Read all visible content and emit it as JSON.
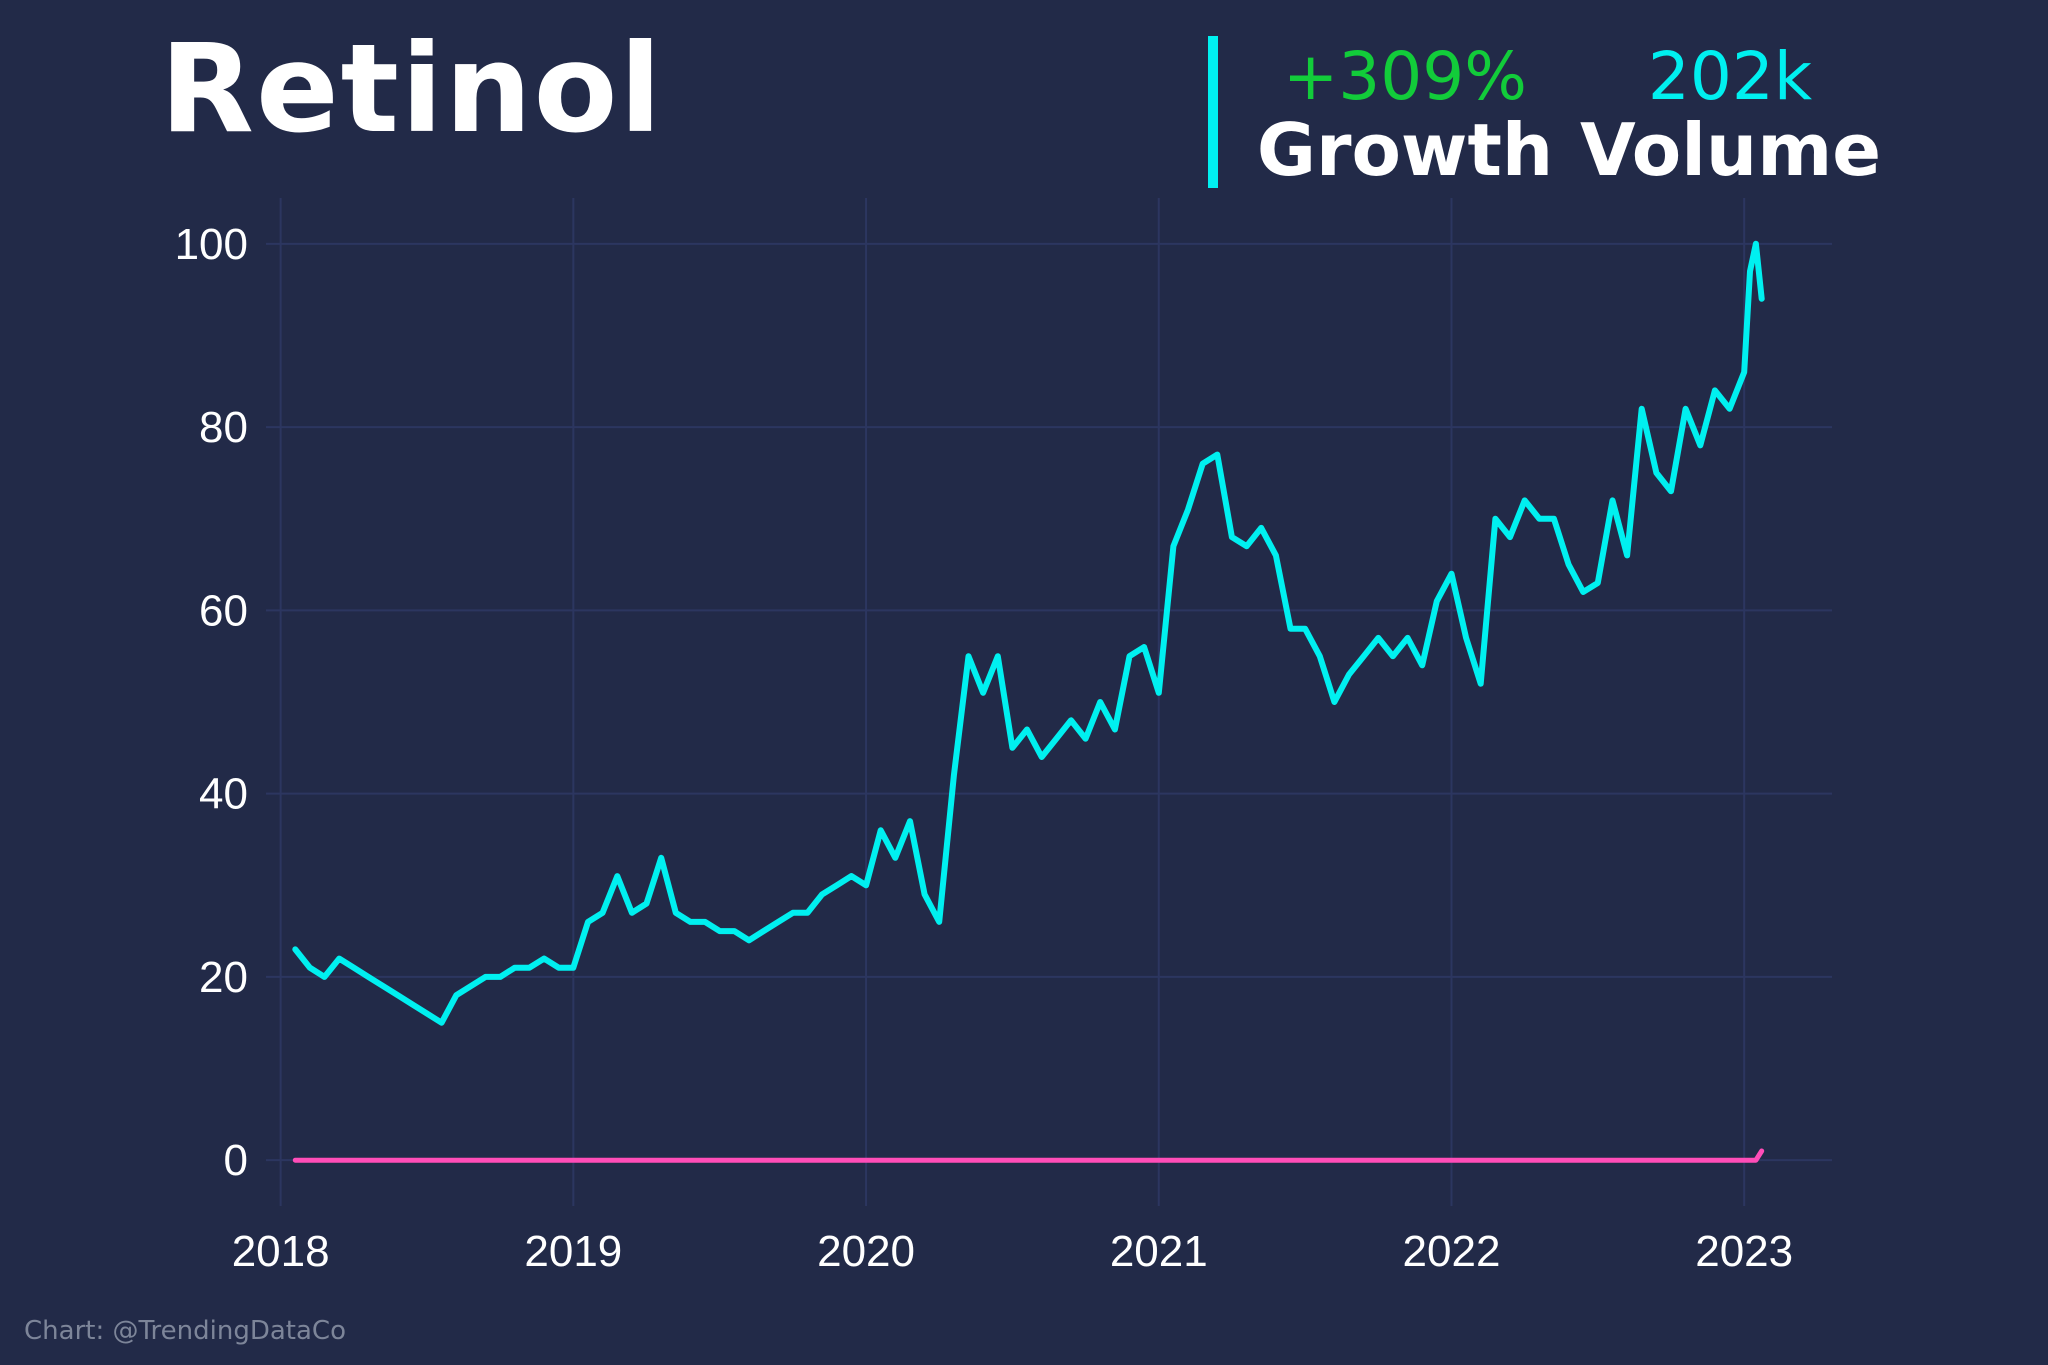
{
  "header": {
    "title": "Retinol",
    "growth_value": "+309%",
    "growth_label": "Growth",
    "volume_value": "202k",
    "volume_label": "Volume"
  },
  "footer": {
    "credit": "Chart: @TrendingDataCo"
  },
  "colors": {
    "background": "#222a48",
    "grid": "#2c3660",
    "line": "#00f0f0",
    "baseline": "#ff4db8",
    "growth": "#12cc3a",
    "text": "#ffffff"
  },
  "chart_data": {
    "type": "line",
    "title": "Retinol",
    "xlabel": "",
    "ylabel": "",
    "xlim": [
      2017.95,
      2023.3
    ],
    "ylim": [
      -5,
      105
    ],
    "x_ticks": [
      "2018",
      "2019",
      "2020",
      "2021",
      "2022",
      "2023"
    ],
    "y_ticks": [
      "0",
      "20",
      "40",
      "60",
      "80",
      "100"
    ],
    "grid": true,
    "series": [
      {
        "color": "#00f0f0",
        "x": [
          2018.05,
          2018.1,
          2018.15,
          2018.2,
          2018.25,
          2018.3,
          2018.35,
          2018.4,
          2018.45,
          2018.5,
          2018.55,
          2018.6,
          2018.65,
          2018.7,
          2018.75,
          2018.8,
          2018.85,
          2018.9,
          2018.95,
          2019.0,
          2019.05,
          2019.1,
          2019.15,
          2019.2,
          2019.25,
          2019.3,
          2019.35,
          2019.4,
          2019.45,
          2019.5,
          2019.55,
          2019.6,
          2019.65,
          2019.7,
          2019.75,
          2019.8,
          2019.85,
          2019.9,
          2019.95,
          2020.0,
          2020.05,
          2020.1,
          2020.15,
          2020.2,
          2020.25,
          2020.3,
          2020.35,
          2020.4,
          2020.45,
          2020.5,
          2020.55,
          2020.6,
          2020.65,
          2020.7,
          2020.75,
          2020.8,
          2020.85,
          2020.9,
          2020.95,
          2021.0,
          2021.05,
          2021.1,
          2021.15,
          2021.2,
          2021.25,
          2021.3,
          2021.35,
          2021.4,
          2021.45,
          2021.5,
          2021.55,
          2021.6,
          2021.65,
          2021.7,
          2021.75,
          2021.8,
          2021.85,
          2021.9,
          2021.95,
          2022.0,
          2022.05,
          2022.1,
          2022.15,
          2022.2,
          2022.25,
          2022.3,
          2022.35,
          2022.4,
          2022.45,
          2022.5,
          2022.55,
          2022.6,
          2022.65,
          2022.7,
          2022.75,
          2022.8,
          2022.85,
          2022.9,
          2022.95,
          2023.0,
          2023.02,
          2023.04,
          2023.06
        ],
        "values": [
          23,
          21,
          20,
          22,
          21,
          20,
          19,
          18,
          17,
          16,
          15,
          18,
          19,
          20,
          20,
          21,
          21,
          22,
          21,
          21,
          26,
          27,
          31,
          27,
          28,
          33,
          27,
          26,
          26,
          25,
          25,
          24,
          25,
          26,
          27,
          27,
          29,
          30,
          31,
          30,
          36,
          33,
          37,
          29,
          26,
          42,
          55,
          51,
          55,
          45,
          47,
          44,
          46,
          48,
          46,
          50,
          47,
          55,
          56,
          51,
          67,
          71,
          76,
          77,
          68,
          67,
          69,
          66,
          58,
          58,
          55,
          50,
          53,
          55,
          57,
          55,
          57,
          54,
          61,
          64,
          57,
          52,
          70,
          68,
          72,
          70,
          70,
          65,
          62,
          63,
          72,
          66,
          82,
          75,
          73,
          82,
          78,
          84,
          82,
          86,
          97,
          100,
          94
        ]
      },
      {
        "color": "#ff4db8",
        "x": [
          2018.05,
          2023.0,
          2023.04,
          2023.06
        ],
        "values": [
          0,
          0,
          0,
          1
        ]
      }
    ]
  }
}
